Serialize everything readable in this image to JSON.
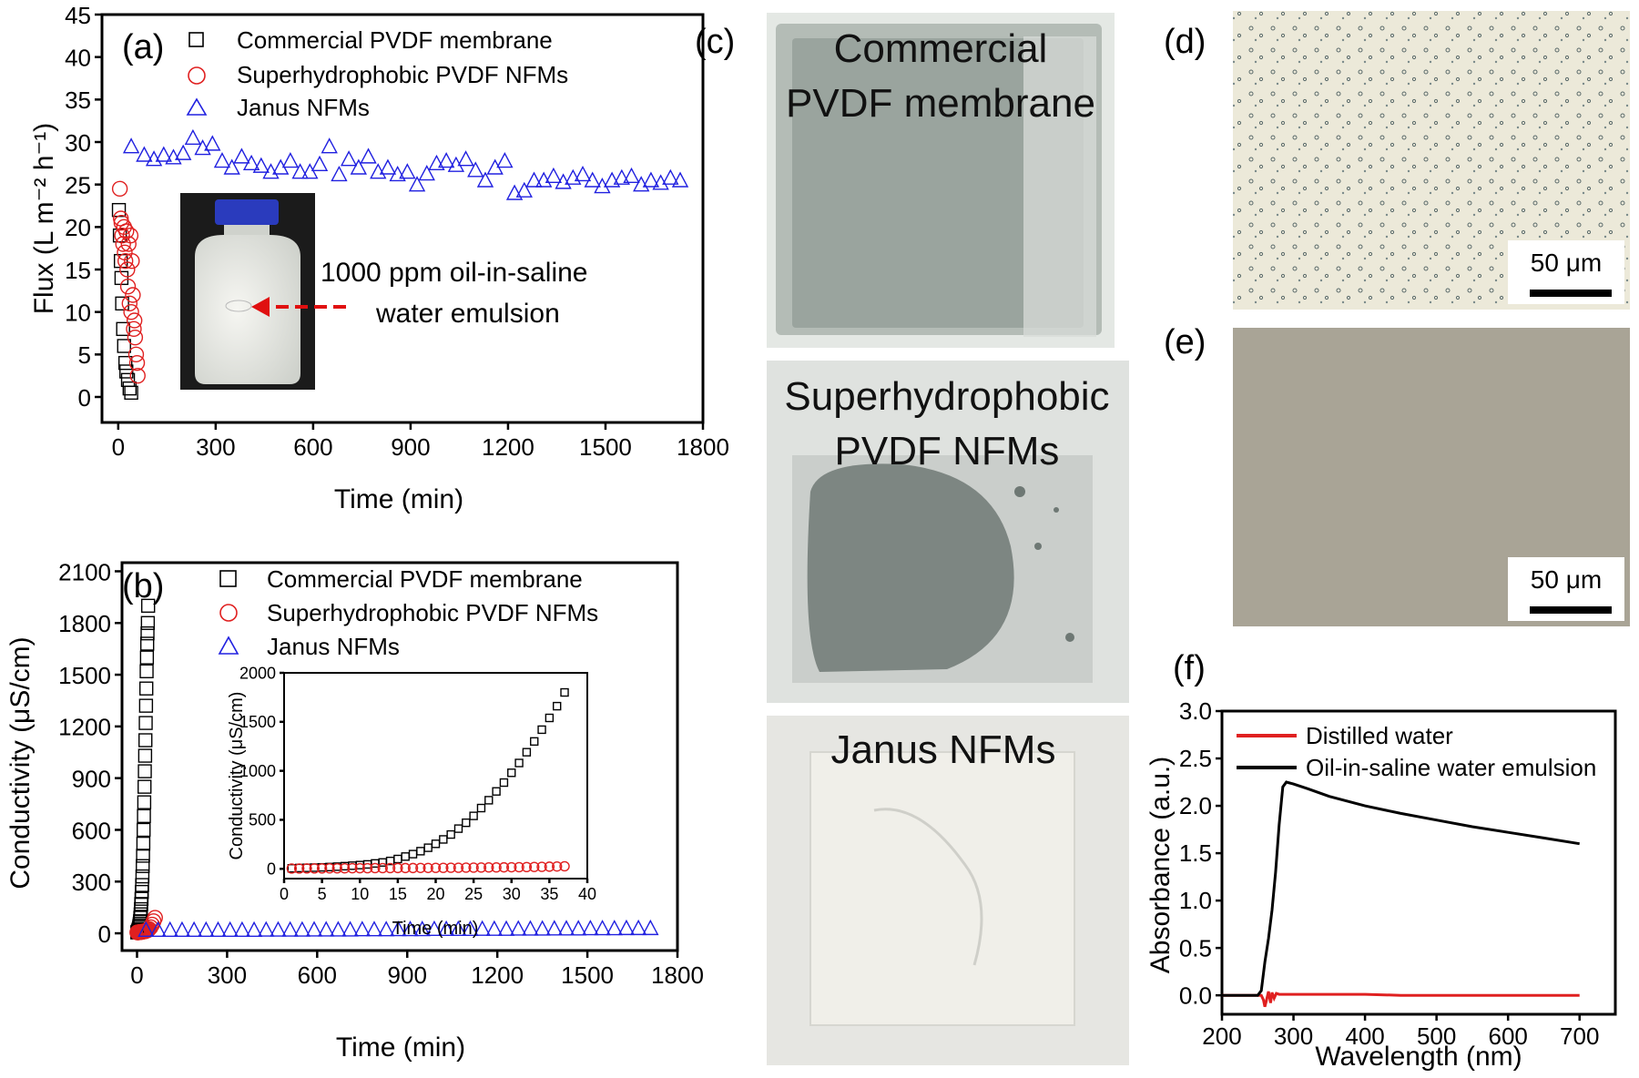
{
  "panels": {
    "a": "(a)",
    "b": "(b)",
    "c": "(c)",
    "d": "(d)",
    "e": "(e)",
    "f": "(f)"
  },
  "legend_ab": [
    "Commercial PVDF membrane",
    "Superhydrophobic PVDF NFMs",
    "Janus NFMs"
  ],
  "annotation_a": [
    "1000 ppm oil-in-saline",
    "water emulsion"
  ],
  "photos_c": [
    "Commercial",
    "PVDF membrane",
    "Superhydrophobic",
    "PVDF NFMs",
    "Janus NFMs"
  ],
  "scalebars": {
    "d": "50 μm",
    "e": "50 μm"
  },
  "colors": {
    "commercial": "#000000",
    "superhydrophobic": "#e02020",
    "janus": "#2020e0"
  },
  "chart_data": [
    {
      "id": "a",
      "type": "scatter",
      "xlabel": "Time (min)",
      "ylabel": "Flux (L m⁻² h⁻¹)",
      "xlim": [
        -50,
        1800
      ],
      "ylim": [
        -3,
        45
      ],
      "xticks": [
        0,
        300,
        600,
        900,
        1200,
        1500,
        1800
      ],
      "yticks": [
        0,
        5,
        10,
        15,
        20,
        25,
        30,
        35,
        40,
        45
      ],
      "series": [
        {
          "name": "Commercial PVDF membrane",
          "marker": "square",
          "x": [
            2,
            5,
            8,
            10,
            12,
            15,
            18,
            22,
            25,
            30,
            35,
            40
          ],
          "y": [
            22,
            19,
            16,
            14,
            11,
            8,
            6,
            4,
            3,
            2,
            1,
            0.5
          ]
        },
        {
          "name": "Superhydrophobic PVDF NFMs",
          "marker": "circle",
          "x": [
            5,
            8,
            10,
            12,
            15,
            18,
            20,
            22,
            25,
            28,
            30,
            32,
            35,
            38,
            40,
            42,
            45,
            48,
            50,
            52,
            55,
            58,
            60
          ],
          "y": [
            24.5,
            21,
            20.5,
            19,
            18,
            20,
            17,
            16,
            19.5,
            15,
            13,
            18,
            11,
            19,
            10,
            16,
            12,
            8,
            9,
            7,
            5,
            4,
            2.5
          ]
        },
        {
          "name": "Janus NFMs",
          "marker": "triangle",
          "x": [
            40,
            80,
            110,
            140,
            170,
            200,
            230,
            260,
            290,
            320,
            350,
            380,
            410,
            440,
            470,
            500,
            530,
            560,
            590,
            620,
            650,
            680,
            710,
            740,
            770,
            800,
            830,
            860,
            890,
            920,
            950,
            980,
            1010,
            1040,
            1070,
            1100,
            1130,
            1160,
            1190,
            1220,
            1250,
            1280,
            1310,
            1340,
            1370,
            1400,
            1430,
            1460,
            1490,
            1520,
            1550,
            1580,
            1610,
            1640,
            1670,
            1700,
            1730
          ],
          "y": [
            29.5,
            28.5,
            28,
            28.5,
            28.2,
            28.7,
            30.5,
            29.3,
            29.8,
            27.8,
            27,
            28.3,
            27.5,
            27.2,
            26.5,
            27,
            27.8,
            26.5,
            26.5,
            27.4,
            29.5,
            26.2,
            28,
            27,
            28.3,
            26.5,
            27,
            26.2,
            26.5,
            25,
            26.3,
            27.5,
            27.8,
            27.3,
            28,
            26.7,
            25.5,
            27,
            27.8,
            24,
            24.3,
            25.5,
            25.5,
            26,
            25.3,
            25.8,
            26.2,
            25.5,
            24.8,
            25.5,
            25.8,
            26,
            25,
            25.5,
            25.2,
            25.8,
            25.5
          ]
        }
      ],
      "inset_photo": true
    },
    {
      "id": "b",
      "type": "scatter",
      "xlabel": "Time (min)",
      "ylabel": "Conductivity (μS/cm)",
      "xlim": [
        -50,
        1800
      ],
      "ylim": [
        -100,
        2150
      ],
      "xticks": [
        0,
        300,
        600,
        900,
        1200,
        1500,
        1800
      ],
      "yticks": [
        0,
        300,
        600,
        900,
        1200,
        1500,
        1800,
        2100
      ],
      "series": [
        {
          "name": "Commercial PVDF membrane",
          "marker": "square",
          "x": [
            1,
            2,
            3,
            4,
            5,
            6,
            7,
            8,
            9,
            10,
            11,
            12,
            13,
            14,
            15,
            16,
            17,
            18,
            19,
            20,
            21,
            22,
            23,
            24,
            25,
            26,
            27,
            28,
            29,
            30,
            31,
            32,
            33,
            34,
            35,
            36,
            37
          ],
          "y": [
            5,
            8,
            10,
            15,
            20,
            25,
            35,
            45,
            55,
            70,
            90,
            110,
            140,
            170,
            200,
            240,
            280,
            330,
            390,
            450,
            520,
            600,
            680,
            760,
            850,
            940,
            1030,
            1120,
            1220,
            1320,
            1420,
            1520,
            1600,
            1680,
            1740,
            1800,
            1900
          ]
        },
        {
          "name": "Superhydrophobic PVDF NFMs",
          "marker": "circle",
          "x": [
            1,
            3,
            5,
            7,
            9,
            11,
            13,
            15,
            17,
            19,
            21,
            23,
            25,
            27,
            29,
            31,
            33,
            35,
            37,
            40,
            45,
            50,
            55,
            60
          ],
          "y": [
            5,
            5,
            6,
            6,
            7,
            7,
            8,
            8,
            9,
            10,
            10,
            11,
            12,
            12,
            14,
            15,
            16,
            18,
            20,
            25,
            35,
            50,
            70,
            90
          ]
        },
        {
          "name": "Janus NFMs",
          "marker": "triangle",
          "x": [
            30,
            70,
            110,
            150,
            190,
            230,
            270,
            310,
            350,
            390,
            430,
            470,
            510,
            550,
            590,
            630,
            670,
            710,
            750,
            790,
            830,
            870,
            910,
            950,
            990,
            1030,
            1070,
            1110,
            1150,
            1190,
            1230,
            1270,
            1310,
            1350,
            1390,
            1430,
            1470,
            1510,
            1550,
            1590,
            1630,
            1670,
            1710
          ],
          "y": [
            20,
            20,
            20,
            20,
            20,
            20,
            20,
            20,
            20,
            20,
            21,
            21,
            21,
            21,
            22,
            22,
            22,
            22,
            23,
            23,
            23,
            24,
            24,
            24,
            25,
            25,
            25,
            25,
            26,
            26,
            26,
            27,
            27,
            27,
            28,
            28,
            28,
            29,
            29,
            29,
            30,
            30,
            30
          ]
        }
      ],
      "inset": {
        "xlabel": "Time (min)",
        "ylabel": "Conductivity (μS/cm)",
        "xlim": [
          0,
          40
        ],
        "ylim": [
          -100,
          2000
        ],
        "xticks": [
          0,
          5,
          10,
          15,
          20,
          25,
          30,
          35,
          40
        ],
        "yticks": [
          0,
          500,
          1000,
          1500,
          2000
        ],
        "series": [
          {
            "name": "Commercial PVDF membrane",
            "marker": "square",
            "x": [
              1,
              2,
              3,
              4,
              5,
              6,
              7,
              8,
              9,
              10,
              11,
              12,
              13,
              14,
              15,
              16,
              17,
              18,
              19,
              20,
              21,
              22,
              23,
              24,
              25,
              26,
              27,
              28,
              29,
              30,
              31,
              32,
              33,
              34,
              35,
              36,
              37
            ],
            "y": [
              5,
              8,
              10,
              12,
              15,
              18,
              22,
              27,
              32,
              38,
              45,
              55,
              65,
              80,
              100,
              125,
              150,
              180,
              215,
              255,
              300,
              350,
              410,
              470,
              540,
              620,
              700,
              790,
              880,
              980,
              1080,
              1190,
              1300,
              1420,
              1540,
              1660,
              1800
            ]
          },
          {
            "name": "Superhydrophobic PVDF NFMs",
            "marker": "circle",
            "x": [
              1,
              2,
              3,
              4,
              5,
              6,
              7,
              8,
              9,
              10,
              11,
              12,
              13,
              14,
              15,
              16,
              17,
              18,
              19,
              20,
              21,
              22,
              23,
              24,
              25,
              26,
              27,
              28,
              29,
              30,
              31,
              32,
              33,
              34,
              35,
              36,
              37
            ],
            "y": [
              3,
              3,
              4,
              4,
              4,
              5,
              5,
              5,
              6,
              6,
              6,
              7,
              7,
              7,
              8,
              8,
              8,
              9,
              9,
              10,
              10,
              11,
              11,
              12,
              12,
              13,
              14,
              14,
              15,
              16,
              17,
              18,
              19,
              20,
              22,
              24,
              26
            ]
          }
        ]
      }
    },
    {
      "id": "f",
      "type": "line",
      "xlabel": "Wavelength (nm)",
      "ylabel": "Absorbance (a.u.)",
      "xlim": [
        200,
        750
      ],
      "ylim": [
        -0.2,
        3.0
      ],
      "xticks": [
        200,
        300,
        400,
        500,
        600,
        700
      ],
      "yticks": [
        0.0,
        0.5,
        1.0,
        1.5,
        2.0,
        2.5,
        3.0
      ],
      "series": [
        {
          "name": "Distilled water",
          "x": [
            200,
            250,
            255,
            258,
            260,
            262,
            265,
            268,
            270,
            273,
            276,
            280,
            285,
            290,
            300,
            350,
            400,
            450,
            500,
            550,
            600,
            650,
            700
          ],
          "y": [
            0,
            0,
            0,
            -0.05,
            -0.12,
            -0.06,
            0.04,
            -0.08,
            0.03,
            -0.03,
            0.02,
            0.01,
            0.01,
            0.01,
            0.01,
            0.01,
            0.01,
            0.0,
            0.0,
            0.0,
            0.0,
            0.0,
            0.0
          ]
        },
        {
          "name": "Oil-in-saline water emulsion",
          "x": [
            200,
            250,
            255,
            260,
            265,
            270,
            275,
            280,
            285,
            290,
            300,
            320,
            350,
            400,
            450,
            500,
            550,
            600,
            650,
            700
          ],
          "y": [
            0,
            0,
            0.05,
            0.35,
            0.6,
            0.9,
            1.3,
            1.8,
            2.2,
            2.25,
            2.23,
            2.18,
            2.1,
            2.0,
            1.92,
            1.85,
            1.78,
            1.72,
            1.66,
            1.6
          ]
        }
      ]
    }
  ]
}
